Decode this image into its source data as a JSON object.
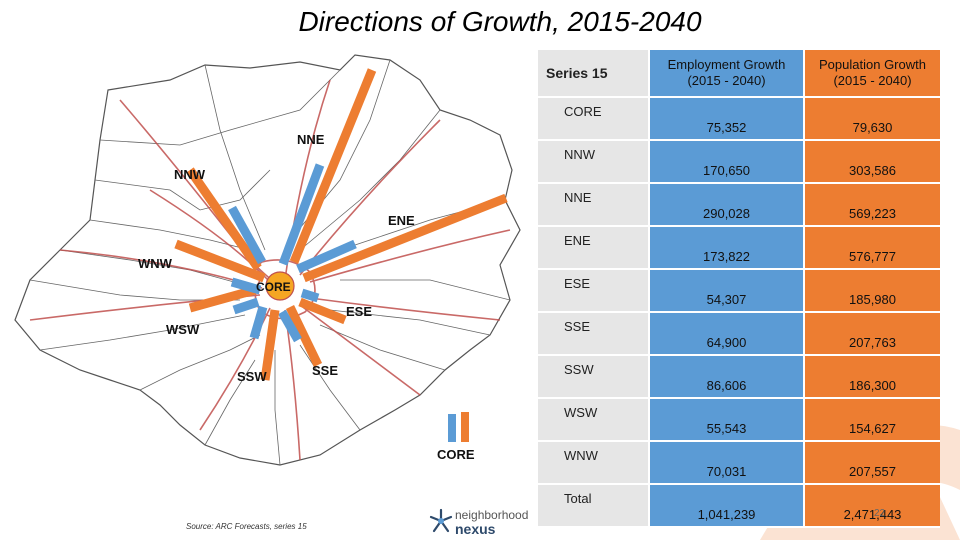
{
  "title": "Directions of Growth, 2015-2040",
  "colors": {
    "employment": "#5b9bd5",
    "population": "#ed7d31",
    "label_col": "#e6e6e6"
  },
  "map": {
    "labels": [
      "NNW",
      "NNE",
      "ENE",
      "WNW",
      "ESE",
      "WSW",
      "SSW",
      "SSE"
    ],
    "core_label": "CORE",
    "legend_label": "CORE"
  },
  "table": {
    "headers": [
      "Series 15",
      "Employment Growth (2015 - 2040)",
      "Population Growth (2015 - 2040)"
    ],
    "rows": [
      [
        "CORE",
        "75,352",
        "79,630"
      ],
      [
        "NNW",
        "170,650",
        "303,586"
      ],
      [
        "NNE",
        "290,028",
        "569,223"
      ],
      [
        "ENE",
        "173,822",
        "576,777"
      ],
      [
        "ESE",
        "54,307",
        "185,980"
      ],
      [
        "SSE",
        "64,900",
        "207,763"
      ],
      [
        "SSW",
        "86,606",
        "186,300"
      ],
      [
        "WSW",
        "55,543",
        "154,627"
      ],
      [
        "WNW",
        "70,031",
        "207,557"
      ],
      [
        "Total",
        "1,041,239",
        "2,471,443"
      ]
    ]
  },
  "footer": {
    "source": "Source: ARC Forecasts, series 15",
    "logo_top": "neighborhood",
    "logo_bottom": "nexus",
    "page_number": "22"
  }
}
